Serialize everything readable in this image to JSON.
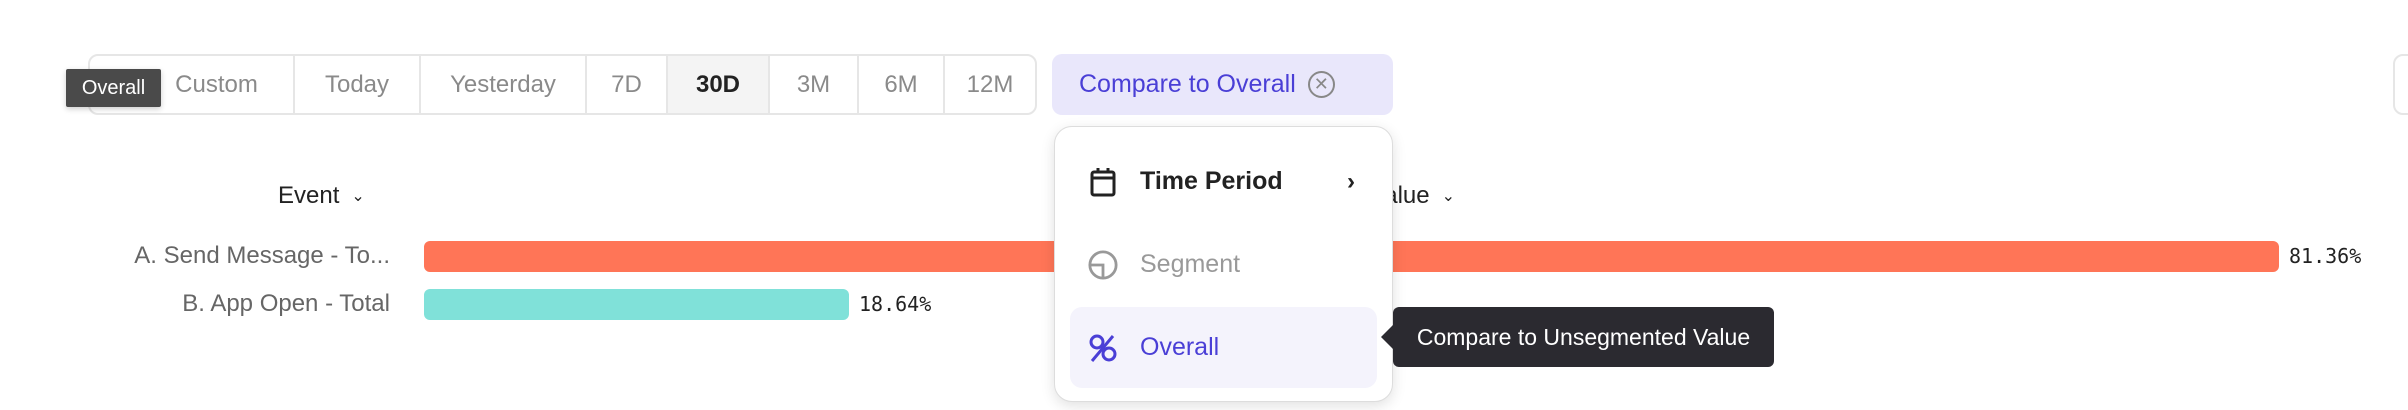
{
  "date_range": {
    "options": [
      "Custom",
      "Today",
      "Yesterday",
      "7D",
      "30D",
      "3M",
      "6M",
      "12M"
    ],
    "selected": "30D"
  },
  "hover_tooltip": "Overall",
  "compare_button": {
    "label": "Compare to Overall",
    "accent": "#4a3fd6",
    "background": "#e9e7fb"
  },
  "table": {
    "event_header": "Event",
    "value_header": "Value"
  },
  "chart_data": {
    "type": "bar",
    "orientation": "horizontal",
    "categories": [
      "A. Send Message - To...",
      "B. App Open - Total"
    ],
    "values": [
      81.36,
      18.64
    ],
    "value_labels": [
      "81.36%",
      "18.64%"
    ],
    "colors": [
      "#ff7557",
      "#80e1d9"
    ]
  },
  "compare_menu": {
    "items": [
      {
        "label": "Time Period",
        "icon": "calendar-icon",
        "submenu": true
      },
      {
        "label": "Segment",
        "icon": "segment-icon",
        "disabled": true
      },
      {
        "label": "Overall",
        "icon": "percent-icon",
        "selected": true
      }
    ]
  },
  "menu_tooltip": "Compare to Unsegmented Value"
}
